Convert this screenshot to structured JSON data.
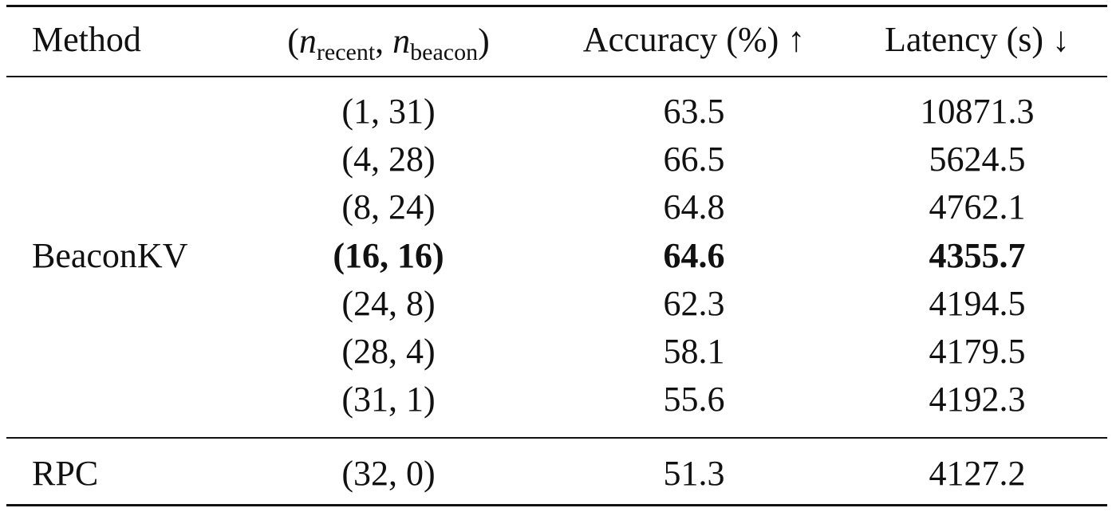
{
  "table": {
    "header": [
      "Method",
      [
        "(",
        "n",
        "recent",
        ", ",
        "n",
        "beacon",
        ")"
      ],
      "Accuracy (%) ↑",
      "Latency (s) ↓"
    ],
    "groups": [
      {
        "method": "BeaconKV",
        "bold_row": 3,
        "rows": [
          [
            "(1, 31)",
            63.5,
            10871.3
          ],
          [
            "(4, 28)",
            66.5,
            5624.5
          ],
          [
            "(8, 24)",
            64.8,
            4762.1
          ],
          [
            "(16, 16)",
            64.6,
            4355.7
          ],
          [
            "(24, 8)",
            62.3,
            4194.5
          ],
          [
            "(28, 4)",
            58.1,
            4179.5
          ],
          [
            "(31, 1)",
            55.6,
            4192.3
          ]
        ]
      },
      {
        "method": "RPC",
        "rows": [
          [
            "(32, 0)",
            51.3,
            4127.2
          ]
        ]
      }
    ]
  }
}
